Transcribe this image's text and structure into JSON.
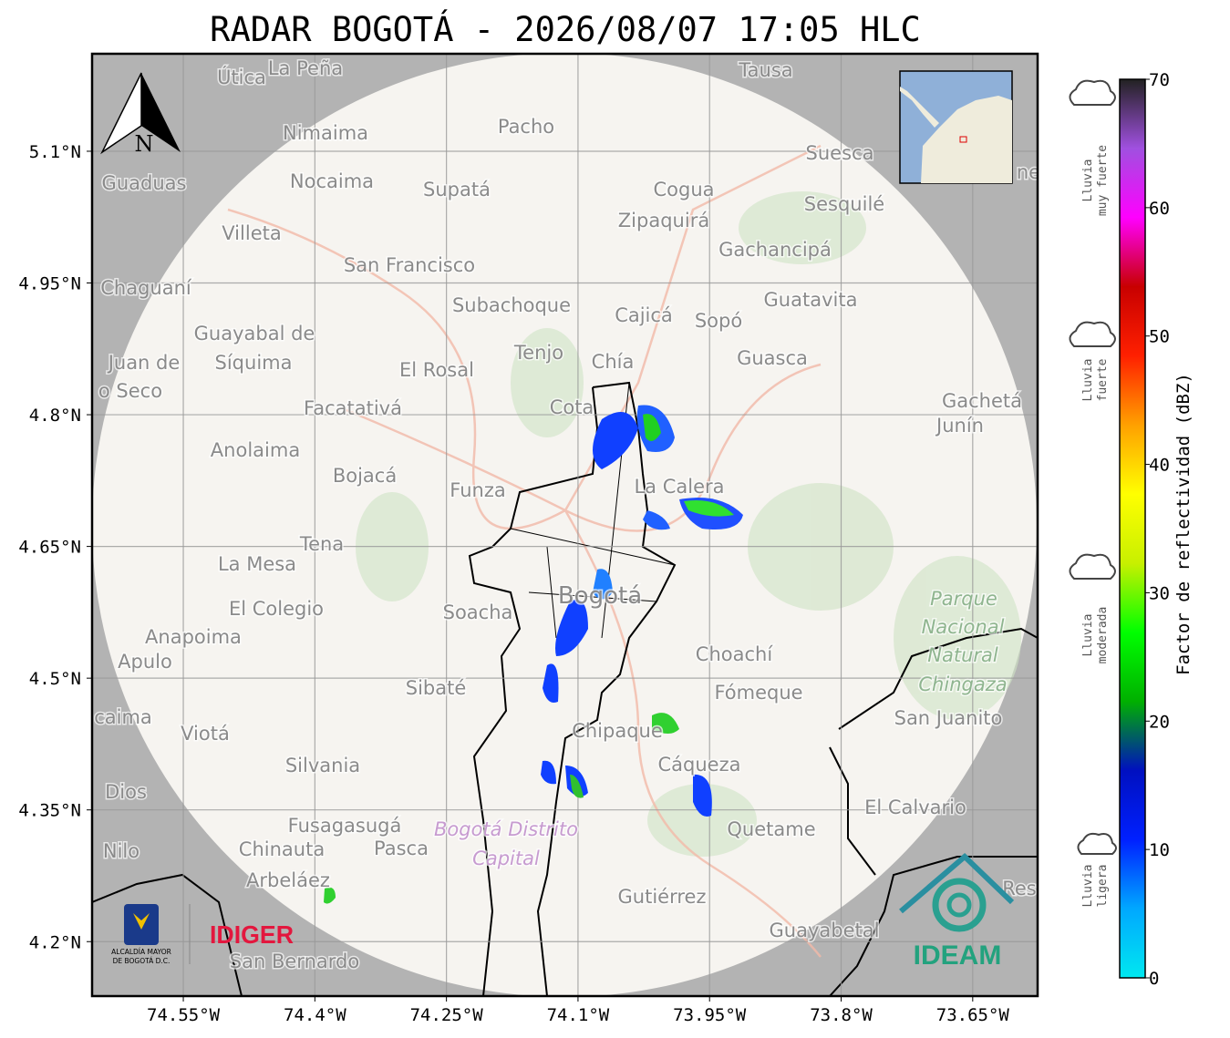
{
  "title": "RADAR BOGOTÁ - 2026/08/07 17:05 HLC",
  "map": {
    "xlim": [
      -74.654,
      -73.576
    ],
    "ylim": [
      4.138,
      5.211
    ],
    "grid": true,
    "xticks": [
      {
        "value": -74.55,
        "label": "74.55°W"
      },
      {
        "value": -74.4,
        "label": "74.4°W"
      },
      {
        "value": -74.25,
        "label": "74.25°W"
      },
      {
        "value": -74.1,
        "label": "74.1°W"
      },
      {
        "value": -73.95,
        "label": "73.95°W"
      },
      {
        "value": -73.8,
        "label": "73.8°W"
      },
      {
        "value": -73.65,
        "label": "73.65°W"
      }
    ],
    "yticks": [
      {
        "value": 5.1,
        "label": "5.1°N"
      },
      {
        "value": 4.95,
        "label": "4.95°N"
      },
      {
        "value": 4.8,
        "label": "4.8°N"
      },
      {
        "value": 4.65,
        "label": "4.65°N"
      },
      {
        "value": 4.5,
        "label": "4.5°N"
      },
      {
        "value": 4.35,
        "label": "4.35°N"
      },
      {
        "value": 4.2,
        "label": "4.2°N"
      }
    ],
    "north": "N",
    "places": [
      "Útica",
      "La Peña",
      "Tausa",
      "Pacho",
      "Nimaima",
      "Guaduas",
      "Nocaima",
      "Supatá",
      "Cogua",
      "Zipaquirá",
      "Suesca",
      "Sesquilé",
      "Villeta",
      "Gachancipá",
      "San Francisco",
      "Chaguaní",
      "Guatavita",
      "Subachoque",
      "Cajicá",
      "Sopó",
      "Guayabal de",
      "Síquima",
      "Tenjo",
      "Chía",
      "Guasca",
      "El Rosal",
      "Juan de",
      "o Seco",
      "Facatativá",
      "Cota",
      "Gachetá",
      "Junín",
      "Anolaima",
      "Bojacá",
      "Funza",
      "La Calera",
      "Tena",
      "La Mesa",
      "Bogotá",
      "El Colegio",
      "Soacha",
      "Parque",
      "Nacional",
      "Natural",
      "Chingaza",
      "Anapoima",
      "Apulo",
      "Choachí",
      "Sibaté",
      "Fómeque",
      "San Juanito",
      "caima",
      "Viotá",
      "Chipaque",
      "Silvania",
      "Cáqueza",
      "Dios",
      "El Calvario",
      "Fusagasugá",
      "Quetame",
      "Bogotá Distrito",
      "Capital",
      "Nilo",
      "Chinauta",
      "Pasca",
      "Arbeláez",
      "Gutiérrez",
      "Guayabetal",
      "San Bernardo",
      "Res",
      "ne"
    ]
  },
  "logos": {
    "alcaldia": [
      "ALCALDÍA MAYOR",
      "DE BOGOTÁ D.C."
    ],
    "idiger": "IDIGER",
    "ideam": "IDEAM"
  },
  "colorbar": {
    "label": "Factor de reflectividad (dBZ)",
    "lim": [
      0,
      70
    ],
    "ticks": [
      0,
      10,
      20,
      30,
      40,
      50,
      60,
      70
    ],
    "colors": [
      "#00e8f0",
      "#00a8ff",
      "#0020ff",
      "#0010c0",
      "#00b000",
      "#00ff00",
      "#c8f000",
      "#ffff00",
      "#ffa000",
      "#ff2000",
      "#c80000",
      "#ff00ff",
      "#a050e0",
      "#222222"
    ]
  },
  "legend": [
    [
      "Lluvia",
      "muy fuerte"
    ],
    [
      "Lluvia",
      "fuerte"
    ],
    [
      "Lluvia",
      "moderada"
    ],
    [
      "Lluvia",
      "ligera"
    ]
  ]
}
